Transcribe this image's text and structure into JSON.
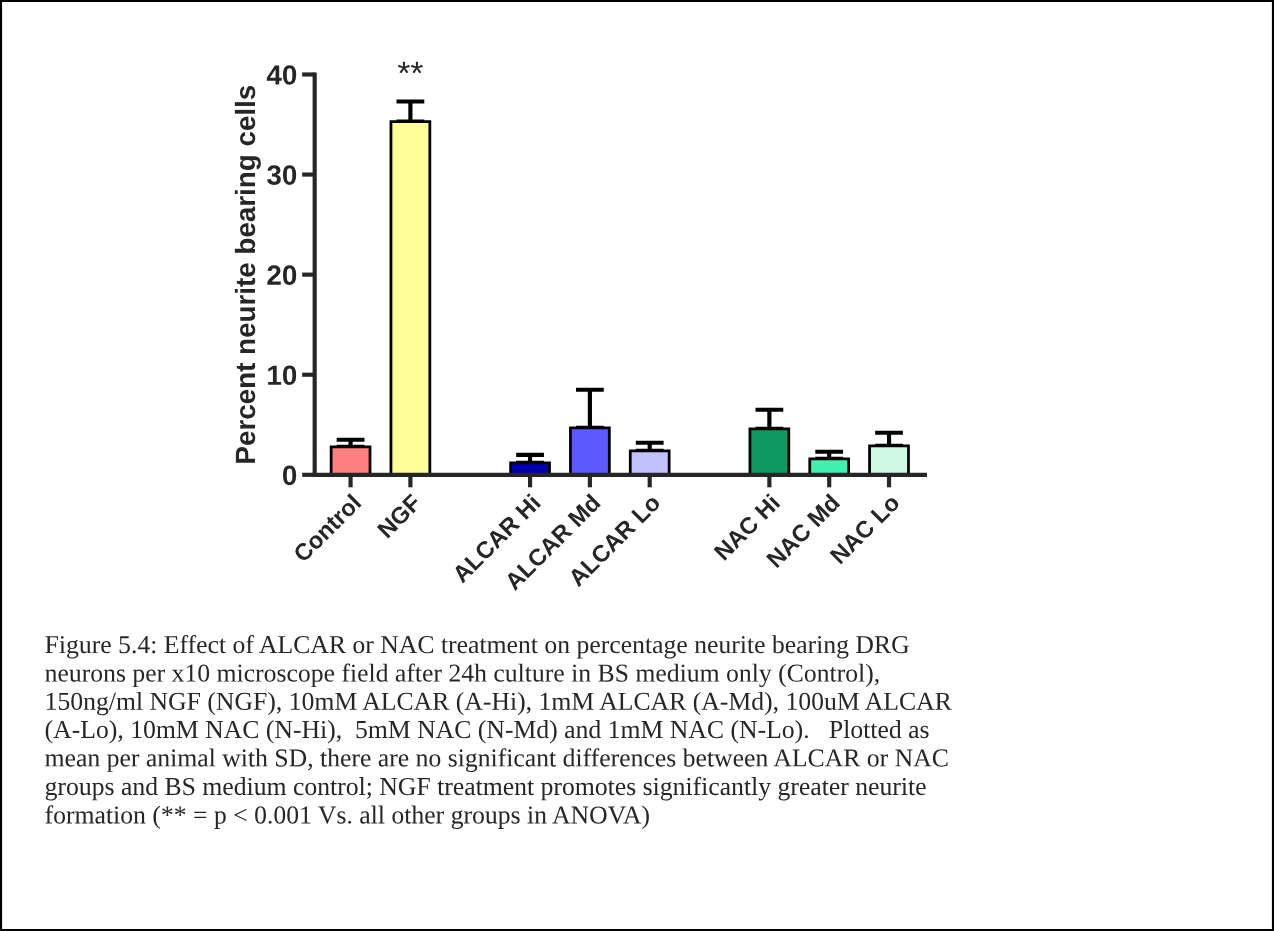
{
  "chart_data": {
    "type": "bar",
    "ylabel": "Percent neurite bearing cells",
    "categories": [
      "Control",
      "NGF",
      null,
      "ALCAR Hi",
      "ALCAR Md",
      "ALCAR Lo",
      null,
      "NAC Hi",
      "NAC Md",
      "NAC Lo"
    ],
    "values": [
      2.8,
      35.3,
      null,
      1.2,
      4.7,
      2.4,
      null,
      4.6,
      1.6,
      2.9
    ],
    "errors": [
      [
        2.8,
        3.5
      ],
      [
        35.3,
        37.3
      ],
      null,
      [
        1.2,
        2.0
      ],
      [
        4.7,
        8.5
      ],
      [
        2.4,
        3.2
      ],
      null,
      [
        4.6,
        6.5
      ],
      [
        1.6,
        2.3
      ],
      [
        2.9,
        4.2
      ]
    ],
    "colors": [
      "#ff8080",
      "#ffff99",
      "#ffffff",
      "#0000b0",
      "#5a5aff",
      "#c0c0ff",
      "#ffffff",
      "#0e9a60",
      "#40f0b0",
      "#ccf8e4"
    ],
    "ylim": [
      0,
      40
    ],
    "yticks": [
      0,
      10,
      20,
      30,
      40
    ],
    "grid": false,
    "legend": false,
    "annotations": [
      "**",
      "Figure 5.4: Effect of ALCAR or NAC treatment on percentage neurite bearing DRG\nneurons per x10 microscope field after 24h culture in BS medium only (Control),\n150ng/ml NGF (NGF), 10mM ALCAR (A-Hi), 1mM ALCAR (A-Md), 100uM ALCAR\n(A-Lo), 10mM NAC (N-Hi),  5mM NAC (N-Md) and 1mM NAC (N-Lo).   Plotted as\nmean per animal with SD, there are no significant differences between ALCAR or NAC\ngroups and BS medium control; NGF treatment promotes significantly greater neurite\nformation (** = p < 0.001 Vs. all other groups in ANOVA)"
    ]
  }
}
